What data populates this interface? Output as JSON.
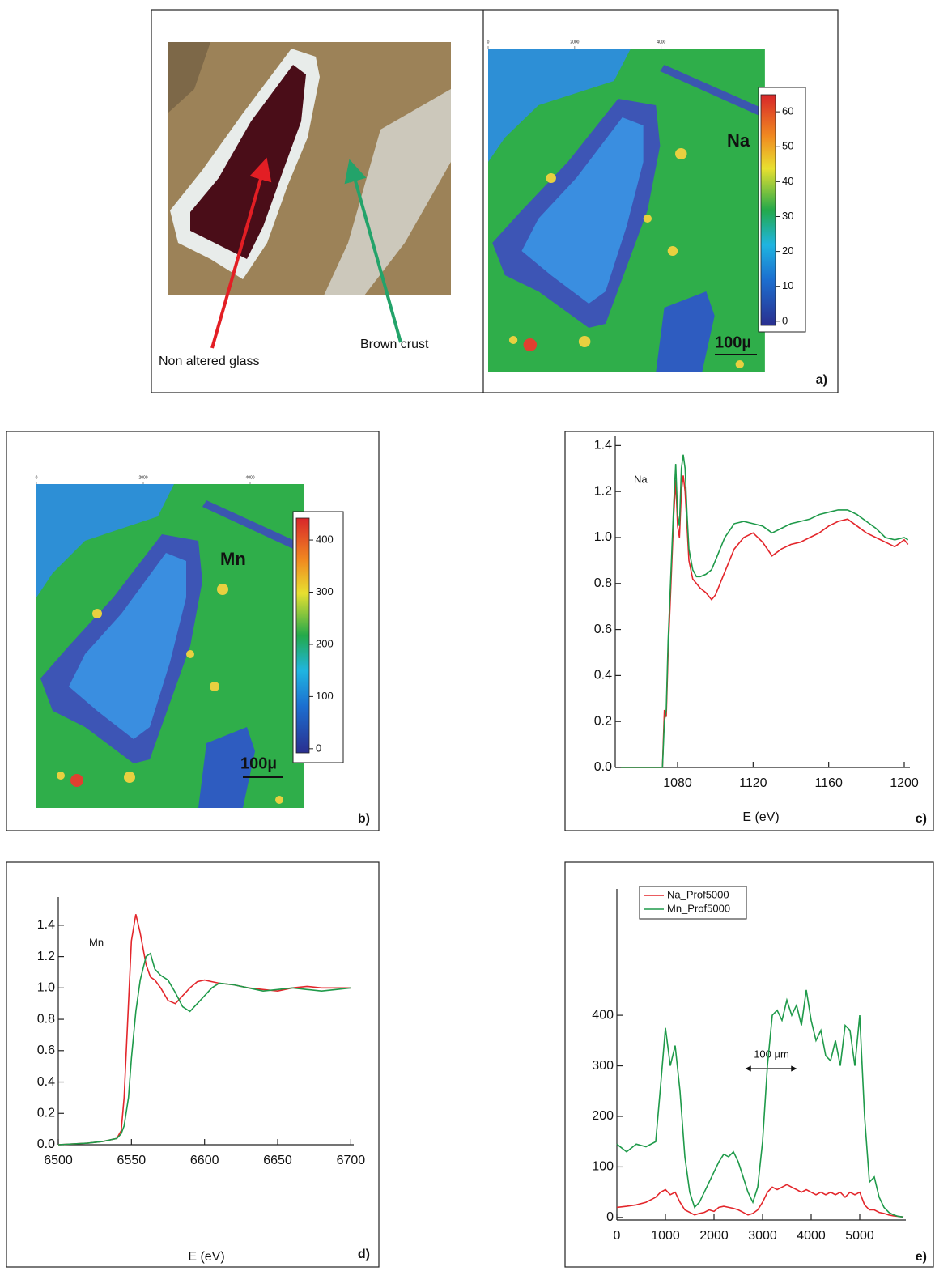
{
  "chart_data": [
    {
      "type": "map",
      "panel_label": "a)",
      "annotations": [
        "Non altered glass",
        "Brown crust"
      ],
      "element": "Na",
      "scale_label": "100µ",
      "xlim": [
        0,
        6400
      ],
      "xticks": [
        0,
        2000,
        4000
      ],
      "clim": [
        -1.2,
        64.9
      ],
      "cticks": [
        0,
        10,
        20,
        30,
        40,
        50,
        60
      ]
    },
    {
      "type": "map",
      "panel_label": "b)",
      "element": "Mn",
      "scale_label": "100µ",
      "xlim": [
        0,
        5000
      ],
      "xticks": [
        0,
        2000,
        4000
      ],
      "clim": [
        -8,
        442
      ],
      "cticks": [
        0,
        100,
        200,
        300,
        400
      ]
    },
    {
      "type": "line",
      "panel_label": "c)",
      "annotation": "Na",
      "xlabel": "E (eV)",
      "xlim": [
        1047,
        1203
      ],
      "xticks": [
        1080,
        1120,
        1160,
        1200
      ],
      "ylim": [
        0,
        1.44
      ],
      "yticks": [
        {
          "value": 0,
          "label": "0.0"
        },
        0.2,
        0.4,
        0.6,
        0.8,
        {
          "value": 1,
          "label": "1.0"
        },
        1.2,
        1.4
      ],
      "x": [
        1050,
        1072,
        1073,
        1074,
        1075,
        1076,
        1077,
        1078,
        1079,
        1080,
        1081,
        1082,
        1083,
        1084,
        1085,
        1086,
        1088,
        1090,
        1092,
        1095,
        1098,
        1100,
        1105,
        1110,
        1115,
        1120,
        1125,
        1130,
        1135,
        1140,
        1145,
        1150,
        1155,
        1160,
        1165,
        1170,
        1175,
        1180,
        1185,
        1190,
        1195,
        1200,
        1202
      ],
      "series": [
        {
          "color": "#e3262b",
          "values": [
            0,
            0,
            0.25,
            0.22,
            0.5,
            0.7,
            0.9,
            1.1,
            1.25,
            1.05,
            1.0,
            1.2,
            1.27,
            1.2,
            1.05,
            0.9,
            0.82,
            0.8,
            0.78,
            0.76,
            0.73,
            0.75,
            0.85,
            0.95,
            1.0,
            1.02,
            0.98,
            0.92,
            0.95,
            0.97,
            0.98,
            1.0,
            1.02,
            1.05,
            1.07,
            1.08,
            1.05,
            1.02,
            1.0,
            0.98,
            0.96,
            0.99,
            0.97
          ]
        },
        {
          "color": "#1f9a4a",
          "values": [
            0,
            0,
            0.2,
            0.25,
            0.55,
            0.75,
            0.95,
            1.15,
            1.32,
            1.1,
            1.05,
            1.3,
            1.36,
            1.3,
            1.1,
            0.95,
            0.86,
            0.83,
            0.83,
            0.84,
            0.86,
            0.9,
            1.0,
            1.06,
            1.07,
            1.06,
            1.05,
            1.02,
            1.04,
            1.06,
            1.07,
            1.08,
            1.1,
            1.11,
            1.12,
            1.12,
            1.1,
            1.07,
            1.04,
            1.0,
            0.99,
            1.0,
            0.99
          ]
        }
      ]
    },
    {
      "type": "line",
      "panel_label": "d)",
      "annotation": "Mn",
      "xlabel": "E (eV)",
      "xlim": [
        6500,
        6702
      ],
      "xticks": [
        6500,
        6550,
        6600,
        6650,
        6700
      ],
      "ylim": [
        0,
        1.58
      ],
      "yticks": [
        {
          "value": 0,
          "label": "0.0"
        },
        0.2,
        0.4,
        0.6,
        0.8,
        {
          "value": 1,
          "label": "1.0"
        },
        1.2,
        1.4
      ],
      "x": [
        6500,
        6520,
        6530,
        6540,
        6543,
        6545,
        6548,
        6550,
        6553,
        6556,
        6560,
        6563,
        6566,
        6570,
        6575,
        6580,
        6585,
        6590,
        6595,
        6600,
        6605,
        6610,
        6620,
        6630,
        6640,
        6650,
        6660,
        6670,
        6680,
        6690,
        6700
      ],
      "series": [
        {
          "color": "#e3262b",
          "values": [
            0,
            0.01,
            0.02,
            0.04,
            0.09,
            0.3,
            0.9,
            1.3,
            1.47,
            1.35,
            1.15,
            1.07,
            1.05,
            1.0,
            0.92,
            0.9,
            0.95,
            1.0,
            1.04,
            1.05,
            1.04,
            1.03,
            1.02,
            1.0,
            0.99,
            0.98,
            1.0,
            1.01,
            1.0,
            1.0,
            1.0
          ]
        },
        {
          "color": "#1f9a4a",
          "values": [
            0,
            0.01,
            0.02,
            0.04,
            0.07,
            0.12,
            0.3,
            0.55,
            0.85,
            1.05,
            1.2,
            1.22,
            1.12,
            1.08,
            1.05,
            0.97,
            0.88,
            0.85,
            0.9,
            0.95,
            1.0,
            1.03,
            1.02,
            1.0,
            0.98,
            0.99,
            1.0,
            0.99,
            0.98,
            0.99,
            1.0
          ]
        }
      ]
    },
    {
      "type": "line",
      "panel_label": "e)",
      "annotation": "100 µm",
      "xlim": [
        0,
        5950
      ],
      "xticks": [
        0,
        1000,
        2000,
        3000,
        4000,
        5000
      ],
      "ylim": [
        -5,
        650
      ],
      "yticks": [
        0,
        100,
        200,
        300,
        400
      ],
      "x": [
        0,
        200,
        400,
        600,
        800,
        900,
        1000,
        1100,
        1200,
        1300,
        1400,
        1500,
        1600,
        1700,
        1800,
        1900,
        2000,
        2100,
        2200,
        2300,
        2400,
        2500,
        2600,
        2700,
        2800,
        2900,
        3000,
        3100,
        3200,
        3300,
        3400,
        3500,
        3600,
        3700,
        3800,
        3900,
        4000,
        4100,
        4200,
        4300,
        4400,
        4500,
        4600,
        4700,
        4800,
        4900,
        5000,
        5100,
        5200,
        5300,
        5400,
        5500,
        5600,
        5700,
        5800,
        5900
      ],
      "series": [
        {
          "name": "Na_Prof5000",
          "color": "#e3262b",
          "values": [
            20,
            22,
            25,
            30,
            40,
            50,
            55,
            45,
            50,
            30,
            15,
            10,
            5,
            8,
            10,
            15,
            12,
            20,
            22,
            20,
            18,
            15,
            10,
            5,
            8,
            15,
            30,
            50,
            60,
            55,
            60,
            65,
            60,
            55,
            50,
            55,
            50,
            45,
            50,
            45,
            50,
            45,
            50,
            40,
            50,
            45,
            50,
            25,
            15,
            15,
            10,
            8,
            5,
            3,
            2,
            1
          ]
        },
        {
          "name": "Mn_Prof5000",
          "color": "#1f9a4a",
          "values": [
            145,
            130,
            145,
            140,
            150,
            260,
            375,
            300,
            340,
            250,
            120,
            50,
            20,
            30,
            50,
            70,
            90,
            110,
            125,
            120,
            130,
            110,
            80,
            50,
            30,
            60,
            150,
            300,
            400,
            410,
            390,
            430,
            400,
            420,
            380,
            450,
            390,
            350,
            370,
            320,
            310,
            350,
            300,
            380,
            370,
            300,
            400,
            200,
            70,
            80,
            40,
            20,
            10,
            5,
            2,
            1
          ]
        }
      ]
    }
  ]
}
